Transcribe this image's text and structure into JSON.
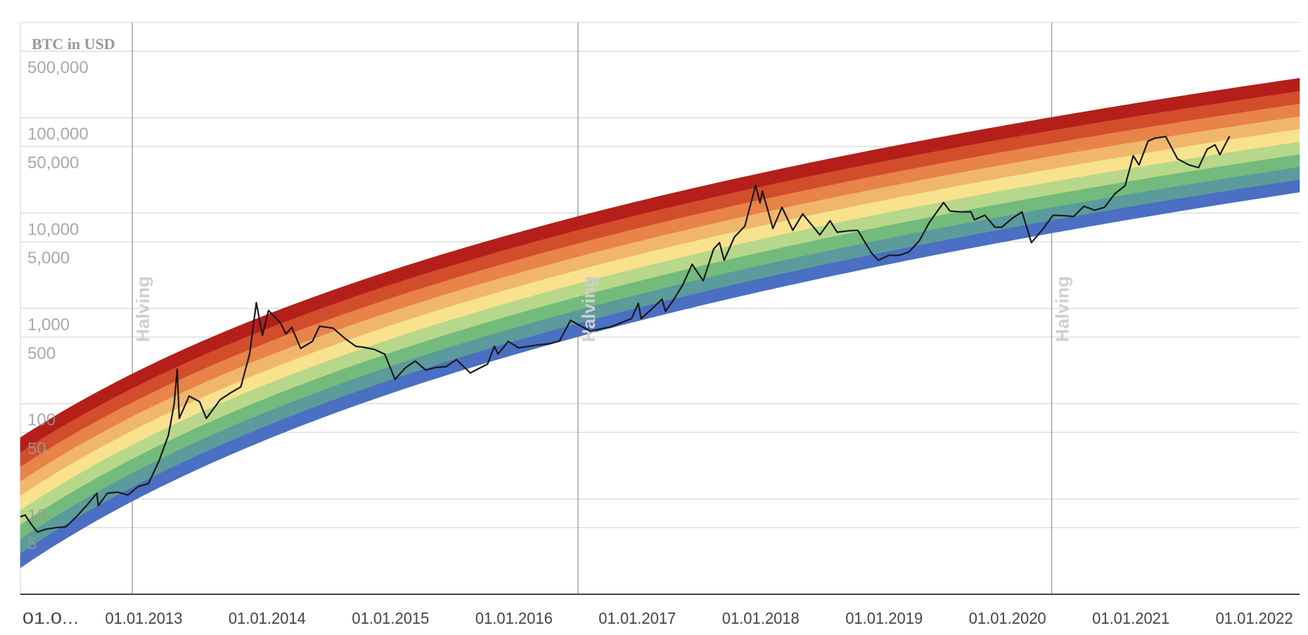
{
  "chart_data": {
    "type": "line",
    "title": "",
    "ylabel": "BTC in USD",
    "xlabel": "",
    "y_scale": "log",
    "ylim": [
      1,
      1000000
    ],
    "xlim": [
      "2012-01-01",
      "2022-05-15"
    ],
    "grid": true,
    "y_ticks": [
      {
        "value": 500000,
        "label": "500,000"
      },
      {
        "value": 100000,
        "label": "100,000"
      },
      {
        "value": 50000,
        "label": "50,000"
      },
      {
        "value": 10000,
        "label": "10,000"
      },
      {
        "value": 5000,
        "label": "5,000"
      },
      {
        "value": 1000,
        "label": "1,000"
      },
      {
        "value": 500,
        "label": "500"
      },
      {
        "value": 100,
        "label": "100"
      },
      {
        "value": 50,
        "label": "50"
      },
      {
        "value": 10,
        "label": "10"
      },
      {
        "value": 5,
        "label": "5"
      }
    ],
    "x_ticks": [
      {
        "date": "2012-01-01",
        "label": "01.0..."
      },
      {
        "date": "2013-01-01",
        "label": "01.01.2013"
      },
      {
        "date": "2014-01-01",
        "label": "01.01.2014"
      },
      {
        "date": "2015-01-01",
        "label": "01.01.2015"
      },
      {
        "date": "2016-01-01",
        "label": "01.01.2016"
      },
      {
        "date": "2017-01-01",
        "label": "01.01.2017"
      },
      {
        "date": "2018-01-01",
        "label": "01.01.2018"
      },
      {
        "date": "2019-01-01",
        "label": "01.01.2019"
      },
      {
        "date": "2020-01-01",
        "label": "01.01.2020"
      },
      {
        "date": "2021-01-01",
        "label": "01.01.2021"
      },
      {
        "date": "2022-01-01",
        "label": "01.01.2022"
      }
    ],
    "annotations": [
      {
        "date": "2012-11-28",
        "label": "Halving"
      },
      {
        "date": "2016-07-09",
        "label": "Halving"
      },
      {
        "date": "2020-05-11",
        "label": "Halving"
      }
    ],
    "rainbow_bands": {
      "colors": [
        "#4a6fc3",
        "#5b9b9c",
        "#72bb7c",
        "#b7d88a",
        "#f8e28e",
        "#f0b76c",
        "#e8834a",
        "#d24d2b",
        "#b41f1a"
      ],
      "bottom_edge": [
        {
          "date": "2012-01-01",
          "value": 1.9
        },
        {
          "date": "2022-05-15",
          "value": 16600
        }
      ],
      "top_edge": [
        {
          "date": "2012-01-01",
          "value": 44
        },
        {
          "date": "2022-05-15",
          "value": 260000
        }
      ]
    },
    "series": [
      {
        "color": "#1a1a1a",
        "points": [
          [
            "2012-01-01",
            6.5
          ],
          [
            "2012-01-15",
            6.8
          ],
          [
            "2012-02-01",
            5.5
          ],
          [
            "2012-02-20",
            4.5
          ],
          [
            "2012-03-15",
            4.8
          ],
          [
            "2012-04-15",
            5.0
          ],
          [
            "2012-05-15",
            5.1
          ],
          [
            "2012-06-15",
            6.5
          ],
          [
            "2012-07-15",
            8.5
          ],
          [
            "2012-08-15",
            11.5
          ],
          [
            "2012-08-19",
            8.5
          ],
          [
            "2012-09-15",
            11.5
          ],
          [
            "2012-10-15",
            11.8
          ],
          [
            "2012-11-15",
            11
          ],
          [
            "2012-12-15",
            13.5
          ],
          [
            "2013-01-15",
            14.5
          ],
          [
            "2013-02-15",
            25
          ],
          [
            "2013-03-15",
            47
          ],
          [
            "2013-04-01",
            100
          ],
          [
            "2013-04-10",
            230
          ],
          [
            "2013-04-16",
            70
          ],
          [
            "2013-05-15",
            120
          ],
          [
            "2013-06-15",
            105
          ],
          [
            "2013-07-05",
            70
          ],
          [
            "2013-08-15",
            110
          ],
          [
            "2013-09-15",
            130
          ],
          [
            "2013-10-15",
            150
          ],
          [
            "2013-11-10",
            330
          ],
          [
            "2013-11-30",
            1150
          ],
          [
            "2013-12-18",
            520
          ],
          [
            "2014-01-05",
            950
          ],
          [
            "2014-02-10",
            700
          ],
          [
            "2014-02-25",
            540
          ],
          [
            "2014-03-15",
            630
          ],
          [
            "2014-04-10",
            380
          ],
          [
            "2014-05-15",
            450
          ],
          [
            "2014-06-05",
            650
          ],
          [
            "2014-07-15",
            620
          ],
          [
            "2014-08-20",
            480
          ],
          [
            "2014-09-20",
            400
          ],
          [
            "2014-10-15",
            390
          ],
          [
            "2014-11-15",
            370
          ],
          [
            "2014-12-15",
            330
          ],
          [
            "2015-01-14",
            180
          ],
          [
            "2015-02-15",
            240
          ],
          [
            "2015-03-15",
            280
          ],
          [
            "2015-04-15",
            225
          ],
          [
            "2015-05-15",
            240
          ],
          [
            "2015-06-15",
            245
          ],
          [
            "2015-07-15",
            290
          ],
          [
            "2015-08-25",
            210
          ],
          [
            "2015-09-15",
            230
          ],
          [
            "2015-10-15",
            260
          ],
          [
            "2015-11-04",
            400
          ],
          [
            "2015-11-15",
            330
          ],
          [
            "2015-12-15",
            450
          ],
          [
            "2016-01-15",
            385
          ],
          [
            "2016-02-15",
            400
          ],
          [
            "2016-03-15",
            415
          ],
          [
            "2016-04-15",
            425
          ],
          [
            "2016-05-15",
            455
          ],
          [
            "2016-06-17",
            750
          ],
          [
            "2016-07-15",
            660
          ],
          [
            "2016-08-15",
            575
          ],
          [
            "2016-09-15",
            610
          ],
          [
            "2016-10-15",
            640
          ],
          [
            "2016-11-15",
            710
          ],
          [
            "2016-12-15",
            780
          ],
          [
            "2017-01-04",
            1130
          ],
          [
            "2017-01-12",
            780
          ],
          [
            "2017-02-15",
            1000
          ],
          [
            "2017-03-15",
            1250
          ],
          [
            "2017-03-25",
            930
          ],
          [
            "2017-04-15",
            1180
          ],
          [
            "2017-05-15",
            1750
          ],
          [
            "2017-06-12",
            2900
          ],
          [
            "2017-07-15",
            1950
          ],
          [
            "2017-08-15",
            4200
          ],
          [
            "2017-09-01",
            4900
          ],
          [
            "2017-09-15",
            3200
          ],
          [
            "2017-10-15",
            5600
          ],
          [
            "2017-11-15",
            7300
          ],
          [
            "2017-12-17",
            19500
          ],
          [
            "2017-12-30",
            12800
          ],
          [
            "2018-01-06",
            17000
          ],
          [
            "2018-02-06",
            6900
          ],
          [
            "2018-03-05",
            11500
          ],
          [
            "2018-04-06",
            6600
          ],
          [
            "2018-05-05",
            9800
          ],
          [
            "2018-06-25",
            5900
          ],
          [
            "2018-07-25",
            8300
          ],
          [
            "2018-08-15",
            6300
          ],
          [
            "2018-09-15",
            6500
          ],
          [
            "2018-10-15",
            6600
          ],
          [
            "2018-11-25",
            3800
          ],
          [
            "2018-12-15",
            3200
          ],
          [
            "2019-01-15",
            3600
          ],
          [
            "2019-02-15",
            3600
          ],
          [
            "2019-03-15",
            3900
          ],
          [
            "2019-04-15",
            5100
          ],
          [
            "2019-05-15",
            8000
          ],
          [
            "2019-06-26",
            12900
          ],
          [
            "2019-07-15",
            10500
          ],
          [
            "2019-08-15",
            10300
          ],
          [
            "2019-09-15",
            10300
          ],
          [
            "2019-09-25",
            8500
          ],
          [
            "2019-10-26",
            9500
          ],
          [
            "2019-11-25",
            7100
          ],
          [
            "2019-12-15",
            7100
          ],
          [
            "2020-01-15",
            8800
          ],
          [
            "2020-02-13",
            10300
          ],
          [
            "2020-03-12",
            4900
          ],
          [
            "2020-04-15",
            6800
          ],
          [
            "2020-05-15",
            9500
          ],
          [
            "2020-06-15",
            9400
          ],
          [
            "2020-07-15",
            9200
          ],
          [
            "2020-08-15",
            11800
          ],
          [
            "2020-09-15",
            10700
          ],
          [
            "2020-10-15",
            11500
          ],
          [
            "2020-11-15",
            16000
          ],
          [
            "2020-12-15",
            19400
          ],
          [
            "2021-01-08",
            40000
          ],
          [
            "2021-01-25",
            32000
          ],
          [
            "2021-02-21",
            57000
          ],
          [
            "2021-03-13",
            61000
          ],
          [
            "2021-04-14",
            63500
          ],
          [
            "2021-05-19",
            37000
          ],
          [
            "2021-06-22",
            32000
          ],
          [
            "2021-07-20",
            30000
          ],
          [
            "2021-08-15",
            47000
          ],
          [
            "2021-09-07",
            52000
          ],
          [
            "2021-09-21",
            41000
          ],
          [
            "2021-10-20",
            64000
          ]
        ]
      }
    ]
  }
}
